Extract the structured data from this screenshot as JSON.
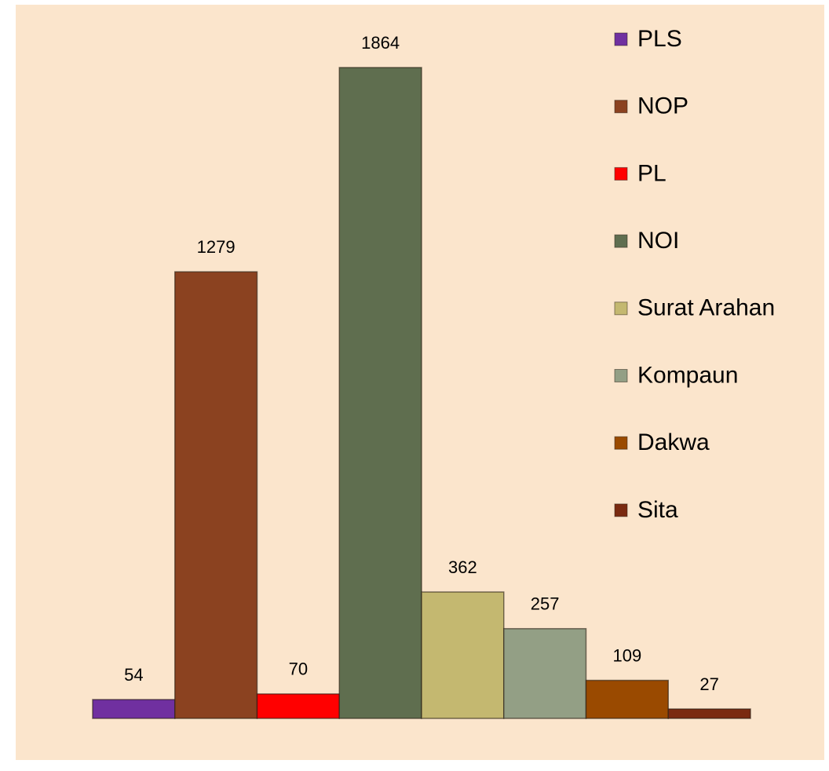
{
  "chart_data": {
    "type": "bar",
    "categories": [
      "PLS",
      "NOP",
      "PL",
      "NOI",
      "Surat Arahan",
      "Kompaun",
      "Dakwa",
      "Sita"
    ],
    "values": [
      54,
      1279,
      70,
      1864,
      362,
      257,
      109,
      27
    ],
    "colors": [
      "#7030a0",
      "#8b4220",
      "#ff0000",
      "#5f6e4f",
      "#c4b870",
      "#939f85",
      "#9a4a00",
      "#7a2a10"
    ],
    "ylim": [
      0,
      1864
    ],
    "legend": "right"
  }
}
